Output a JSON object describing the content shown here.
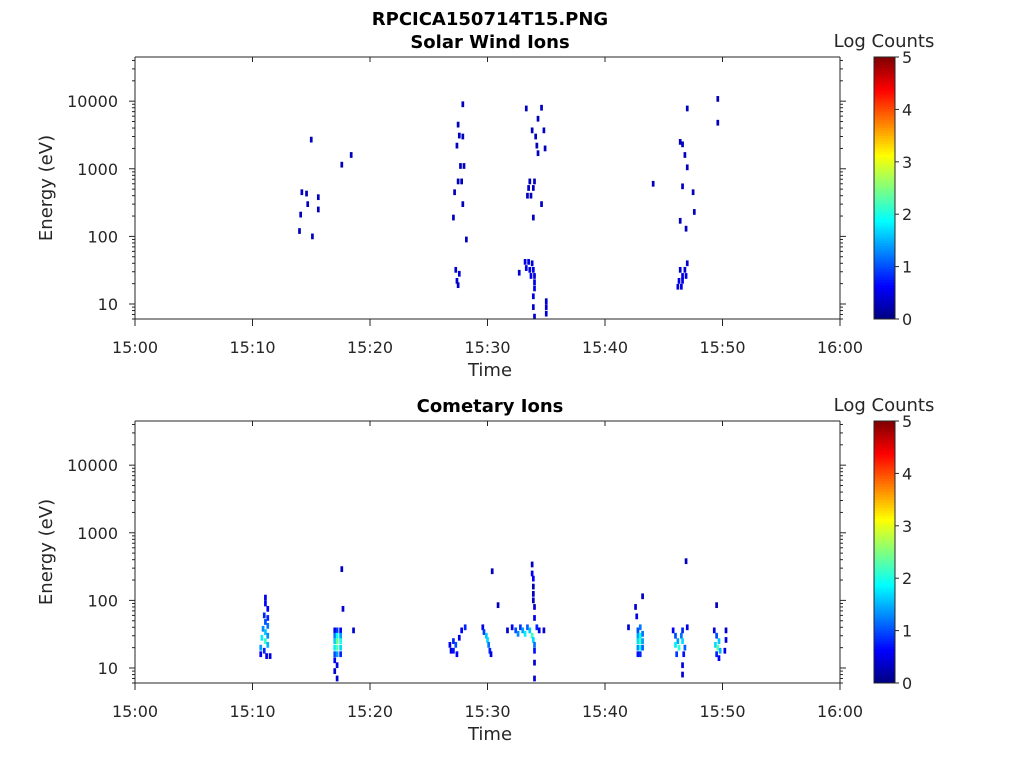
{
  "figure": {
    "title": "RPCICA150714T15.PNG"
  },
  "colorbar": {
    "label": "Log Counts",
    "ticks": [
      "0",
      "1",
      "2",
      "3",
      "4",
      "5"
    ],
    "range": [
      0,
      5
    ],
    "colormap": "jet"
  },
  "chart_data": [
    {
      "type": "heatmap",
      "title": "Solar Wind Ions",
      "xlabel": "Time",
      "ylabel": "Energy (eV)",
      "x_ticks": [
        "15:00",
        "15:10",
        "15:20",
        "15:30",
        "15:40",
        "15:50",
        "16:00"
      ],
      "x_range_minutes": [
        0,
        60
      ],
      "y_scale": "log",
      "y_range": [
        6,
        45000
      ],
      "y_ticks": [
        10,
        100,
        1000,
        10000
      ],
      "y_tick_labels": [
        "10",
        "100",
        "1000",
        "10000"
      ],
      "cells": [
        [
          14.2,
          450,
          0.3
        ],
        [
          14.6,
          430,
          0.3
        ],
        [
          14.1,
          210,
          0.3
        ],
        [
          14.0,
          120,
          0.3
        ],
        [
          14.7,
          300,
          0.3
        ],
        [
          15.0,
          2700,
          0.3
        ],
        [
          15.6,
          380,
          0.3
        ],
        [
          15.6,
          250,
          0.3
        ],
        [
          15.1,
          100,
          0.3
        ],
        [
          17.6,
          1150,
          0.3
        ],
        [
          18.4,
          1600,
          0.3
        ],
        [
          27.9,
          9000,
          0.3
        ],
        [
          27.5,
          4500,
          0.3
        ],
        [
          27.6,
          3100,
          0.3
        ],
        [
          27.9,
          3000,
          0.3
        ],
        [
          27.4,
          2200,
          0.3
        ],
        [
          27.7,
          1100,
          0.3
        ],
        [
          28.0,
          1100,
          0.3
        ],
        [
          27.5,
          650,
          0.3
        ],
        [
          27.8,
          650,
          0.3
        ],
        [
          27.2,
          450,
          0.3
        ],
        [
          27.9,
          300,
          0.3
        ],
        [
          27.1,
          190,
          0.3
        ],
        [
          28.2,
          90,
          0.3
        ],
        [
          27.3,
          32,
          0.4
        ],
        [
          27.6,
          28,
          0.4
        ],
        [
          27.4,
          22,
          0.4
        ],
        [
          27.5,
          19,
          0.4
        ],
        [
          33.3,
          7800,
          0.3
        ],
        [
          34.6,
          8000,
          0.3
        ],
        [
          34.3,
          5500,
          0.3
        ],
        [
          33.8,
          3700,
          0.3
        ],
        [
          34.8,
          3700,
          0.3
        ],
        [
          34.1,
          3000,
          0.3
        ],
        [
          34.2,
          2200,
          0.3
        ],
        [
          34.9,
          2000,
          0.3
        ],
        [
          34.3,
          1700,
          0.3
        ],
        [
          33.6,
          650,
          0.3
        ],
        [
          34.0,
          650,
          0.3
        ],
        [
          33.5,
          520,
          0.3
        ],
        [
          33.9,
          520,
          0.3
        ],
        [
          33.4,
          400,
          0.3
        ],
        [
          33.7,
          400,
          0.3
        ],
        [
          34.6,
          300,
          0.3
        ],
        [
          33.9,
          190,
          0.3
        ],
        [
          32.7,
          29,
          0.4
        ],
        [
          33.2,
          42,
          0.5
        ],
        [
          33.5,
          42,
          0.5
        ],
        [
          33.8,
          40,
          0.5
        ],
        [
          33.3,
          34,
          0.5
        ],
        [
          33.6,
          32,
          0.5
        ],
        [
          33.9,
          32,
          0.5
        ],
        [
          33.7,
          26,
          0.5
        ],
        [
          34.0,
          26,
          0.5
        ],
        [
          34.0,
          21,
          0.5
        ],
        [
          34.0,
          17,
          0.5
        ],
        [
          33.9,
          13,
          0.5
        ],
        [
          33.9,
          9,
          0.4
        ],
        [
          34.0,
          6.5,
          0.4
        ],
        [
          35.0,
          11,
          0.4
        ],
        [
          35.0,
          9,
          0.4
        ],
        [
          35.0,
          7.2,
          0.4
        ],
        [
          44.1,
          600,
          0.3
        ],
        [
          47.0,
          7800,
          0.3
        ],
        [
          46.4,
          2500,
          0.3
        ],
        [
          46.6,
          2300,
          0.3
        ],
        [
          46.8,
          1600,
          0.3
        ],
        [
          47.0,
          1050,
          0.3
        ],
        [
          46.6,
          550,
          0.3
        ],
        [
          47.5,
          450,
          0.3
        ],
        [
          47.6,
          230,
          0.3
        ],
        [
          46.4,
          170,
          0.3
        ],
        [
          46.9,
          130,
          0.3
        ],
        [
          46.4,
          32,
          0.4
        ],
        [
          46.8,
          32,
          0.4
        ],
        [
          47.0,
          40,
          0.4
        ],
        [
          46.6,
          26,
          0.5
        ],
        [
          46.9,
          26,
          0.5
        ],
        [
          46.6,
          22,
          0.5
        ],
        [
          46.3,
          22,
          0.5
        ],
        [
          46.2,
          18,
          0.5
        ],
        [
          46.5,
          18,
          0.5
        ],
        [
          49.6,
          10800,
          0.3
        ],
        [
          49.6,
          4800,
          0.3
        ]
      ]
    },
    {
      "type": "heatmap",
      "title": "Cometary Ions",
      "xlabel": "Time",
      "ylabel": "Energy (eV)",
      "x_ticks": [
        "15:00",
        "15:10",
        "15:20",
        "15:30",
        "15:40",
        "15:50",
        "16:00"
      ],
      "x_range_minutes": [
        0,
        60
      ],
      "y_scale": "log",
      "y_range": [
        6,
        45000
      ],
      "y_ticks": [
        10,
        100,
        1000,
        10000
      ],
      "y_tick_labels": [
        "10",
        "100",
        "1000",
        "10000"
      ],
      "cells": [
        [
          11.1,
          110,
          0.5
        ],
        [
          11.1,
          90,
          0.6
        ],
        [
          11.3,
          75,
          0.6
        ],
        [
          11.0,
          60,
          0.8
        ],
        [
          11.3,
          55,
          0.8
        ],
        [
          11.1,
          48,
          1.0
        ],
        [
          11.3,
          42,
          1.2
        ],
        [
          10.9,
          38,
          1.3
        ],
        [
          11.1,
          34,
          1.6
        ],
        [
          11.3,
          30,
          1.3
        ],
        [
          10.8,
          28,
          1.8
        ],
        [
          11.1,
          25,
          2.1
        ],
        [
          11.3,
          22,
          1.5
        ],
        [
          10.7,
          20,
          1.4
        ],
        [
          11.0,
          18,
          0.8
        ],
        [
          10.7,
          16,
          0.6
        ],
        [
          11.2,
          15,
          0.5
        ],
        [
          11.5,
          15,
          0.5
        ],
        [
          17.0,
          36,
          0.5
        ],
        [
          17.2,
          36,
          0.9
        ],
        [
          17.5,
          36,
          0.6
        ],
        [
          17.0,
          30,
          1.2
        ],
        [
          17.2,
          30,
          1.9
        ],
        [
          17.5,
          30,
          1.4
        ],
        [
          17.0,
          25,
          1.6
        ],
        [
          17.2,
          25,
          2.4
        ],
        [
          17.5,
          25,
          2.0
        ],
        [
          17.0,
          20,
          1.8
        ],
        [
          17.2,
          20,
          2.3
        ],
        [
          17.5,
          20,
          1.7
        ],
        [
          17.0,
          16,
          1.0
        ],
        [
          17.2,
          16,
          1.4
        ],
        [
          17.5,
          16,
          0.8
        ],
        [
          17.0,
          13,
          0.6
        ],
        [
          17.2,
          11,
          0.5
        ],
        [
          17.0,
          9,
          0.4
        ],
        [
          17.2,
          7,
          0.4
        ],
        [
          17.6,
          290,
          0.3
        ],
        [
          17.7,
          75,
          0.4
        ],
        [
          18.6,
          36,
          0.4
        ],
        [
          26.8,
          22,
          0.6
        ],
        [
          26.9,
          18,
          0.5
        ],
        [
          27.1,
          25,
          0.8
        ],
        [
          27.3,
          22,
          1.0
        ],
        [
          27.1,
          18,
          0.7
        ],
        [
          27.4,
          16,
          0.6
        ],
        [
          27.6,
          28,
          0.5
        ],
        [
          27.8,
          36,
          0.6
        ],
        [
          28.1,
          40,
          0.8
        ],
        [
          29.6,
          40,
          0.5
        ],
        [
          29.7,
          34,
          0.9
        ],
        [
          29.9,
          30,
          1.6
        ],
        [
          30.0,
          26,
          1.7
        ],
        [
          30.1,
          22,
          1.2
        ],
        [
          30.2,
          18,
          0.8
        ],
        [
          30.3,
          16,
          0.5
        ],
        [
          30.4,
          270,
          0.3
        ],
        [
          30.9,
          85,
          0.3
        ],
        [
          31.7,
          36,
          0.4
        ],
        [
          32.1,
          40,
          0.6
        ],
        [
          32.4,
          36,
          1.0
        ],
        [
          32.6,
          32,
          1.3
        ],
        [
          32.8,
          40,
          0.9
        ],
        [
          33.0,
          36,
          1.4
        ],
        [
          33.2,
          32,
          1.8
        ],
        [
          33.4,
          40,
          1.1
        ],
        [
          33.6,
          36,
          1.6
        ],
        [
          33.8,
          30,
          2.2
        ],
        [
          33.9,
          26,
          1.7
        ],
        [
          34.0,
          22,
          1.2
        ],
        [
          34.0,
          18,
          0.7
        ],
        [
          33.8,
          250,
          0.6
        ],
        [
          33.9,
          210,
          0.6
        ],
        [
          33.8,
          340,
          0.3
        ],
        [
          33.9,
          160,
          0.3
        ],
        [
          33.9,
          125,
          0.3
        ],
        [
          33.9,
          100,
          0.3
        ],
        [
          34.0,
          80,
          0.4
        ],
        [
          34.0,
          55,
          0.5
        ],
        [
          34.2,
          40,
          0.8
        ],
        [
          34.4,
          36,
          0.5
        ],
        [
          34.8,
          36,
          0.4
        ],
        [
          34.0,
          12,
          0.4
        ],
        [
          34.0,
          7,
          0.4
        ],
        [
          42.0,
          40,
          0.4
        ],
        [
          42.6,
          80,
          0.4
        ],
        [
          42.7,
          58,
          0.5
        ],
        [
          42.8,
          36,
          1.0
        ],
        [
          43.0,
          40,
          1.2
        ],
        [
          42.8,
          30,
          1.4
        ],
        [
          43.0,
          30,
          1.9
        ],
        [
          43.2,
          32,
          1.2
        ],
        [
          42.8,
          25,
          1.7
        ],
        [
          43.0,
          25,
          2.2
        ],
        [
          43.2,
          25,
          1.4
        ],
        [
          42.8,
          20,
          1.3
        ],
        [
          43.0,
          20,
          1.9
        ],
        [
          43.2,
          20,
          1.1
        ],
        [
          42.8,
          16,
          0.7
        ],
        [
          43.0,
          16,
          0.8
        ],
        [
          43.2,
          115,
          0.3
        ],
        [
          45.8,
          36,
          0.6
        ],
        [
          46.0,
          30,
          1.0
        ],
        [
          46.2,
          25,
          1.4
        ],
        [
          46.0,
          22,
          1.8
        ],
        [
          46.3,
          20,
          2.1
        ],
        [
          46.1,
          16,
          0.9
        ],
        [
          46.5,
          30,
          1.2
        ],
        [
          46.6,
          36,
          0.8
        ],
        [
          46.6,
          25,
          1.7
        ],
        [
          46.8,
          20,
          1.1
        ],
        [
          46.7,
          16,
          0.7
        ],
        [
          46.6,
          11,
          0.5
        ],
        [
          46.6,
          8,
          0.4
        ],
        [
          47.0,
          40,
          0.5
        ],
        [
          46.9,
          380,
          0.3
        ],
        [
          49.3,
          36,
          0.5
        ],
        [
          49.5,
          30,
          1.0
        ],
        [
          49.7,
          25,
          1.6
        ],
        [
          49.4,
          22,
          1.7
        ],
        [
          49.6,
          20,
          2.3
        ],
        [
          49.8,
          18,
          1.5
        ],
        [
          49.5,
          16,
          0.8
        ],
        [
          49.7,
          14,
          0.6
        ],
        [
          49.5,
          85,
          0.3
        ],
        [
          50.3,
          36,
          0.4
        ],
        [
          50.3,
          26,
          0.5
        ],
        [
          50.2,
          18,
          0.5
        ]
      ]
    }
  ]
}
